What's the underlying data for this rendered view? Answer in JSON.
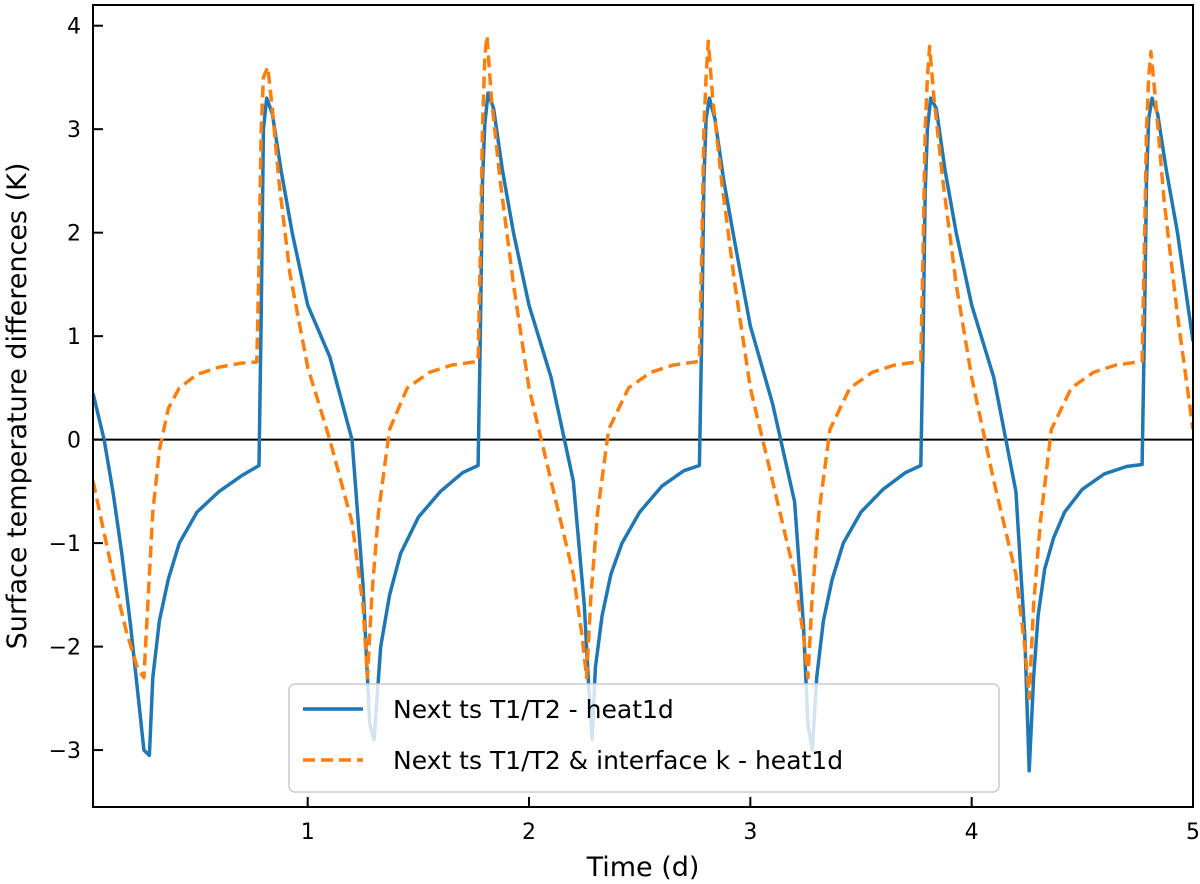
{
  "chart_data": {
    "type": "line",
    "title": "",
    "xlabel": "Time (d)",
    "ylabel": "Surface temperature differences (K)",
    "xlim": [
      0.03,
      5.0
    ],
    "ylim": [
      -3.55,
      4.2
    ],
    "xticks": [
      1,
      2,
      3,
      4,
      5
    ],
    "yticks": [
      -3,
      -2,
      -1,
      0,
      1,
      2,
      3,
      4
    ],
    "tick_direction": "in",
    "zero_line": true,
    "legend_position": "bottom-center",
    "colors": {
      "series1": "#1f77b4",
      "series2": "#ff7f0e",
      "zero_line": "#000000"
    },
    "series": [
      {
        "name": "Next ts T1/T2 - heat1d",
        "style": "solid",
        "x": [
          0.03,
          0.08,
          0.12,
          0.16,
          0.2,
          0.24,
          0.26,
          0.285,
          0.3,
          0.33,
          0.37,
          0.42,
          0.5,
          0.6,
          0.7,
          0.78,
          0.79,
          0.8,
          0.815,
          0.84,
          0.88,
          0.93,
          1.0,
          1.1,
          1.2,
          1.25,
          1.28,
          1.3,
          1.33,
          1.37,
          1.42,
          1.5,
          1.6,
          1.7,
          1.77,
          1.78,
          1.79,
          1.8,
          1.815,
          1.84,
          1.88,
          1.93,
          2.0,
          2.1,
          2.2,
          2.25,
          2.27,
          2.285,
          2.3,
          2.33,
          2.37,
          2.42,
          2.5,
          2.6,
          2.7,
          2.77,
          2.78,
          2.79,
          2.8,
          2.815,
          2.84,
          2.88,
          2.93,
          3.0,
          3.1,
          3.2,
          3.24,
          3.26,
          3.28,
          3.3,
          3.33,
          3.37,
          3.42,
          3.5,
          3.6,
          3.7,
          3.77,
          3.78,
          3.79,
          3.8,
          3.815,
          3.84,
          3.88,
          3.93,
          4.0,
          4.1,
          4.2,
          4.24,
          4.26,
          4.28,
          4.3,
          4.33,
          4.37,
          4.42,
          4.5,
          4.6,
          4.7,
          4.77,
          4.78,
          4.79,
          4.8,
          4.815,
          4.84,
          4.88,
          4.93,
          5.0
        ],
        "y": [
          0.45,
          0.0,
          -0.5,
          -1.1,
          -1.8,
          -2.6,
          -3.0,
          -3.05,
          -2.3,
          -1.75,
          -1.35,
          -1.0,
          -0.7,
          -0.5,
          -0.35,
          -0.25,
          1.2,
          3.0,
          3.3,
          3.15,
          2.6,
          2.0,
          1.3,
          0.8,
          0.0,
          -1.4,
          -2.75,
          -2.9,
          -2.0,
          -1.5,
          -1.1,
          -0.75,
          -0.5,
          -0.32,
          -0.25,
          1.0,
          2.5,
          3.05,
          3.35,
          3.2,
          2.6,
          2.0,
          1.3,
          0.6,
          -0.4,
          -1.6,
          -2.4,
          -2.9,
          -2.2,
          -1.7,
          -1.3,
          -1.0,
          -0.7,
          -0.45,
          -0.3,
          -0.25,
          1.0,
          2.5,
          3.1,
          3.3,
          3.1,
          2.5,
          1.9,
          1.1,
          0.35,
          -0.6,
          -1.8,
          -2.75,
          -3.0,
          -2.3,
          -1.75,
          -1.35,
          -1.0,
          -0.7,
          -0.48,
          -0.32,
          -0.25,
          0.9,
          2.4,
          3.0,
          3.3,
          3.2,
          2.6,
          2.0,
          1.3,
          0.6,
          -0.5,
          -1.9,
          -3.2,
          -2.3,
          -1.7,
          -1.25,
          -0.95,
          -0.7,
          -0.48,
          -0.33,
          -0.26,
          -0.24,
          1.0,
          2.5,
          3.1,
          3.3,
          3.15,
          2.6,
          2.0,
          0.95
        ]
      },
      {
        "name": "Next ts T1/T2 & interface k - heat1d",
        "style": "dashed",
        "x": [
          0.03,
          0.08,
          0.13,
          0.18,
          0.23,
          0.26,
          0.28,
          0.3,
          0.33,
          0.37,
          0.42,
          0.5,
          0.6,
          0.7,
          0.77,
          0.78,
          0.79,
          0.8,
          0.82,
          0.84,
          0.87,
          0.92,
          1.0,
          1.1,
          1.2,
          1.25,
          1.27,
          1.29,
          1.32,
          1.37,
          1.45,
          1.55,
          1.65,
          1.75,
          1.77,
          1.78,
          1.79,
          1.8,
          1.81,
          1.83,
          1.87,
          1.93,
          2.0,
          2.1,
          2.2,
          2.24,
          2.26,
          2.28,
          2.31,
          2.36,
          2.45,
          2.55,
          2.65,
          2.75,
          2.77,
          2.78,
          2.79,
          2.8,
          2.81,
          2.83,
          2.87,
          2.93,
          3.0,
          3.1,
          3.2,
          3.24,
          3.26,
          3.28,
          3.31,
          3.36,
          3.45,
          3.55,
          3.65,
          3.75,
          3.77,
          3.78,
          3.79,
          3.8,
          3.81,
          3.83,
          3.87,
          3.93,
          4.0,
          4.1,
          4.2,
          4.24,
          4.26,
          4.28,
          4.31,
          4.36,
          4.45,
          4.55,
          4.65,
          4.75,
          4.77,
          4.78,
          4.79,
          4.8,
          4.81,
          4.83,
          4.87,
          4.93,
          5.0
        ],
        "y": [
          -0.4,
          -0.9,
          -1.4,
          -1.85,
          -2.2,
          -2.3,
          -1.5,
          -0.7,
          -0.1,
          0.3,
          0.5,
          0.63,
          0.7,
          0.74,
          0.75,
          1.7,
          3.0,
          3.5,
          3.6,
          3.2,
          2.5,
          1.6,
          0.7,
          0.0,
          -0.8,
          -1.6,
          -2.3,
          -1.5,
          -0.7,
          0.1,
          0.5,
          0.65,
          0.72,
          0.75,
          0.76,
          1.8,
          3.0,
          3.7,
          3.9,
          3.3,
          2.5,
          1.5,
          0.5,
          -0.4,
          -1.3,
          -1.9,
          -2.3,
          -1.5,
          -0.7,
          0.1,
          0.5,
          0.65,
          0.72,
          0.75,
          0.76,
          1.8,
          3.0,
          3.5,
          3.85,
          3.3,
          2.5,
          1.5,
          0.5,
          -0.4,
          -1.3,
          -1.9,
          -2.3,
          -1.5,
          -0.7,
          0.1,
          0.5,
          0.65,
          0.72,
          0.75,
          0.76,
          1.8,
          3.0,
          3.5,
          3.8,
          3.3,
          2.5,
          1.5,
          0.6,
          -0.4,
          -1.3,
          -2.0,
          -2.5,
          -1.6,
          -0.8,
          0.1,
          0.5,
          0.65,
          0.72,
          0.75,
          0.76,
          1.8,
          3.0,
          3.5,
          3.75,
          3.3,
          2.3,
          1.2,
          0.1
        ]
      }
    ]
  }
}
